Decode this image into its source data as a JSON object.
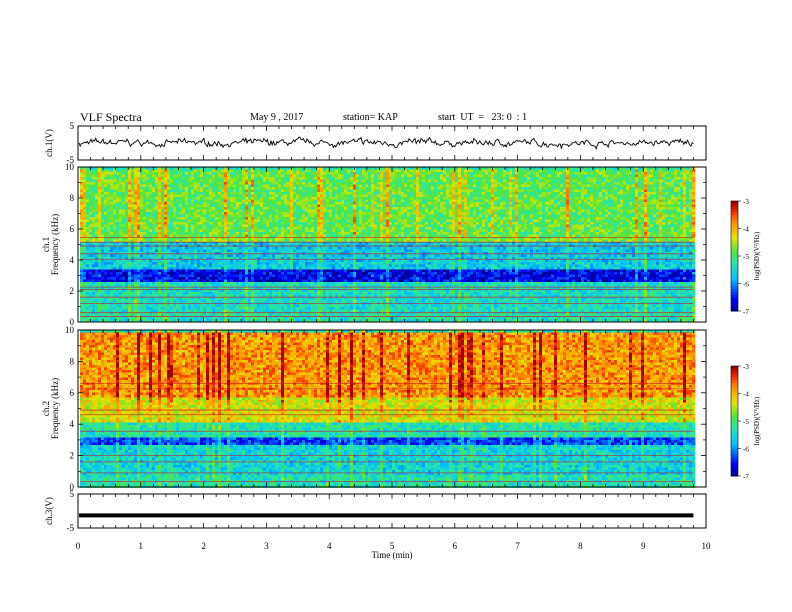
{
  "header": {
    "title": "VLF Spectra",
    "date": "May 9 , 2017",
    "station": "station= KAP",
    "start": "start  UT  =   23: 0  : 1"
  },
  "chart_data": [
    {
      "type": "line",
      "panel": "ch1-waveform",
      "ylabel": "ch.1(V)",
      "ylim": [
        -5,
        5
      ],
      "yticks": [
        "5",
        "-5"
      ],
      "xlim": [
        0,
        10
      ],
      "series": [
        {
          "amplitude_range": [
            -2.2,
            1.8
          ],
          "color": "#000000"
        }
      ]
    },
    {
      "type": "heatmap",
      "panel": "ch1-spectrogram",
      "ylabel": "ch.1 Frequency (kHz)",
      "ylim": [
        0,
        10
      ],
      "yticks": [
        "0",
        "2",
        "4",
        "6",
        "8",
        "10"
      ],
      "xlim": [
        0,
        10
      ],
      "colorbar": {
        "label": "log(PSD)(V²/Hz)",
        "ticks": [
          "-3",
          "-4",
          "-5",
          "-6",
          "-7"
        ],
        "range": [
          -7,
          -3
        ]
      },
      "bands": [
        {
          "f": [
            0,
            0.8
          ],
          "level": -5.3
        },
        {
          "f": [
            0.8,
            2.6
          ],
          "level": -5.4
        },
        {
          "f": [
            2.6,
            3.5
          ],
          "level": -6.6
        },
        {
          "f": [
            3.5,
            5.3
          ],
          "level": -5.6
        },
        {
          "f": [
            5.3,
            5.6
          ],
          "level": -4.7
        },
        {
          "f": [
            5.6,
            10
          ],
          "level": -4.8
        }
      ]
    },
    {
      "type": "heatmap",
      "panel": "ch2-spectrogram",
      "ylabel": "ch.2 Frequency (kHz)",
      "ylim": [
        0,
        10
      ],
      "yticks": [
        "0",
        "2",
        "4",
        "6",
        "8",
        "10"
      ],
      "xlim": [
        0,
        10
      ],
      "colorbar": {
        "label": "log(PSD)(V²/Hz)",
        "ticks": [
          "-3",
          "-4",
          "-5",
          "-6",
          "-7"
        ],
        "range": [
          -7,
          -3
        ]
      },
      "bands": [
        {
          "f": [
            0,
            0.8
          ],
          "level": -5.3
        },
        {
          "f": [
            0.8,
            2.8
          ],
          "level": -5.5
        },
        {
          "f": [
            2.8,
            3.3
          ],
          "level": -6.3
        },
        {
          "f": [
            3.3,
            4.2
          ],
          "level": -5.3
        },
        {
          "f": [
            4.2,
            5.8
          ],
          "level": -4.3
        },
        {
          "f": [
            5.8,
            10
          ],
          "level": -3.8
        }
      ]
    },
    {
      "type": "line",
      "panel": "ch3-waveform",
      "ylabel": "ch.3(V)",
      "ylim": [
        -5,
        5
      ],
      "yticks": [
        "5",
        "-5"
      ],
      "xlim": [
        0,
        10
      ],
      "series": [
        {
          "value": -1.3,
          "color": "#000000"
        }
      ]
    }
  ],
  "xaxis": {
    "label": "Time  (min)",
    "ticks": [
      "0",
      "1",
      "2",
      "3",
      "4",
      "5",
      "6",
      "7",
      "8",
      "9",
      "10"
    ],
    "data_end_min": 9.8
  }
}
